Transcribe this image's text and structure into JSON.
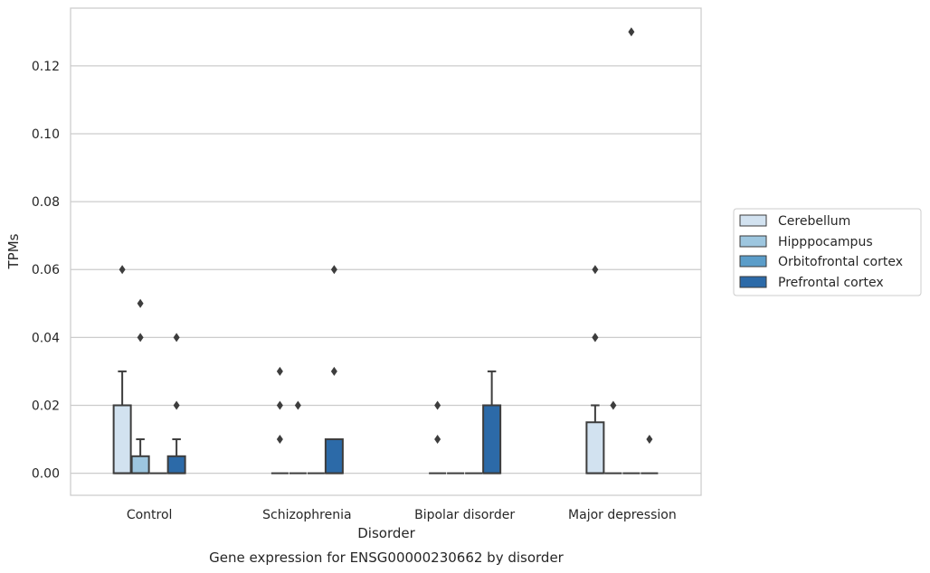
{
  "caption": "Gene expression for ENSG00000230662 by disorder",
  "chart_data": {
    "type": "box",
    "title": "",
    "xlabel": "Disorder",
    "ylabel": "TPMs",
    "categories": [
      "Control",
      "Schizophrenia",
      "Bipolar disorder",
      "Major depression"
    ],
    "ylim": [
      -0.0065,
      0.137
    ],
    "yticks": [
      "0.00",
      "0.02",
      "0.04",
      "0.06",
      "0.08",
      "0.10",
      "0.12"
    ],
    "grid": "horizontal",
    "legend_position": "right",
    "series": [
      {
        "name": "Cerebellum",
        "color": "#d2e2f0",
        "boxes": [
          {
            "q1": 0.0,
            "median": 0.0,
            "q3": 0.02,
            "whisker_low": 0.0,
            "whisker_high": 0.03,
            "outliers": [
              0.06
            ]
          },
          {
            "q1": 0.0,
            "median": 0.0,
            "q3": 0.0,
            "whisker_low": 0.0,
            "whisker_high": 0.0,
            "outliers": [
              0.01,
              0.02,
              0.03
            ]
          },
          {
            "q1": 0.0,
            "median": 0.0,
            "q3": 0.0,
            "whisker_low": 0.0,
            "whisker_high": 0.0,
            "outliers": [
              0.01,
              0.02
            ]
          },
          {
            "q1": 0.0,
            "median": 0.0,
            "q3": 0.015,
            "whisker_low": 0.0,
            "whisker_high": 0.02,
            "outliers": [
              0.04,
              0.04,
              0.06
            ]
          }
        ]
      },
      {
        "name": "Hipppocampus",
        "color": "#9dc6df",
        "boxes": [
          {
            "q1": 0.0,
            "median": 0.0,
            "q3": 0.005,
            "whisker_low": 0.0,
            "whisker_high": 0.01,
            "outliers": [
              0.04,
              0.05
            ]
          },
          {
            "q1": 0.0,
            "median": 0.0,
            "q3": 0.0,
            "whisker_low": 0.0,
            "whisker_high": 0.0,
            "outliers": [
              0.02
            ]
          },
          {
            "q1": 0.0,
            "median": 0.0,
            "q3": 0.0,
            "whisker_low": 0.0,
            "whisker_high": 0.0,
            "outliers": []
          },
          {
            "q1": 0.0,
            "median": 0.0,
            "q3": 0.0,
            "whisker_low": 0.0,
            "whisker_high": 0.0,
            "outliers": [
              0.02
            ]
          }
        ]
      },
      {
        "name": "Orbitofrontal cortex",
        "color": "#5b9dc9",
        "boxes": [
          {
            "q1": 0.0,
            "median": 0.0,
            "q3": 0.0,
            "whisker_low": 0.0,
            "whisker_high": 0.0,
            "outliers": []
          },
          {
            "q1": 0.0,
            "median": 0.0,
            "q3": 0.0,
            "whisker_low": 0.0,
            "whisker_high": 0.0,
            "outliers": []
          },
          {
            "q1": 0.0,
            "median": 0.0,
            "q3": 0.0,
            "whisker_low": 0.0,
            "whisker_high": 0.0,
            "outliers": []
          },
          {
            "q1": 0.0,
            "median": 0.0,
            "q3": 0.0,
            "whisker_low": 0.0,
            "whisker_high": 0.0,
            "outliers": [
              0.13
            ]
          }
        ]
      },
      {
        "name": "Prefrontal cortex",
        "color": "#2c6aa8",
        "boxes": [
          {
            "q1": 0.0,
            "median": 0.0,
            "q3": 0.005,
            "whisker_low": 0.0,
            "whisker_high": 0.01,
            "outliers": [
              0.02,
              0.04
            ]
          },
          {
            "q1": 0.0,
            "median": 0.0,
            "q3": 0.01,
            "whisker_low": 0.0,
            "whisker_high": 0.01,
            "outliers": [
              0.03,
              0.06
            ]
          },
          {
            "q1": 0.0,
            "median": 0.0,
            "q3": 0.02,
            "whisker_low": 0.0,
            "whisker_high": 0.03,
            "outliers": []
          },
          {
            "q1": 0.0,
            "median": 0.0,
            "q3": 0.0,
            "whisker_low": 0.0,
            "whisker_high": 0.0,
            "outliers": [
              0.01
            ]
          }
        ]
      }
    ]
  }
}
